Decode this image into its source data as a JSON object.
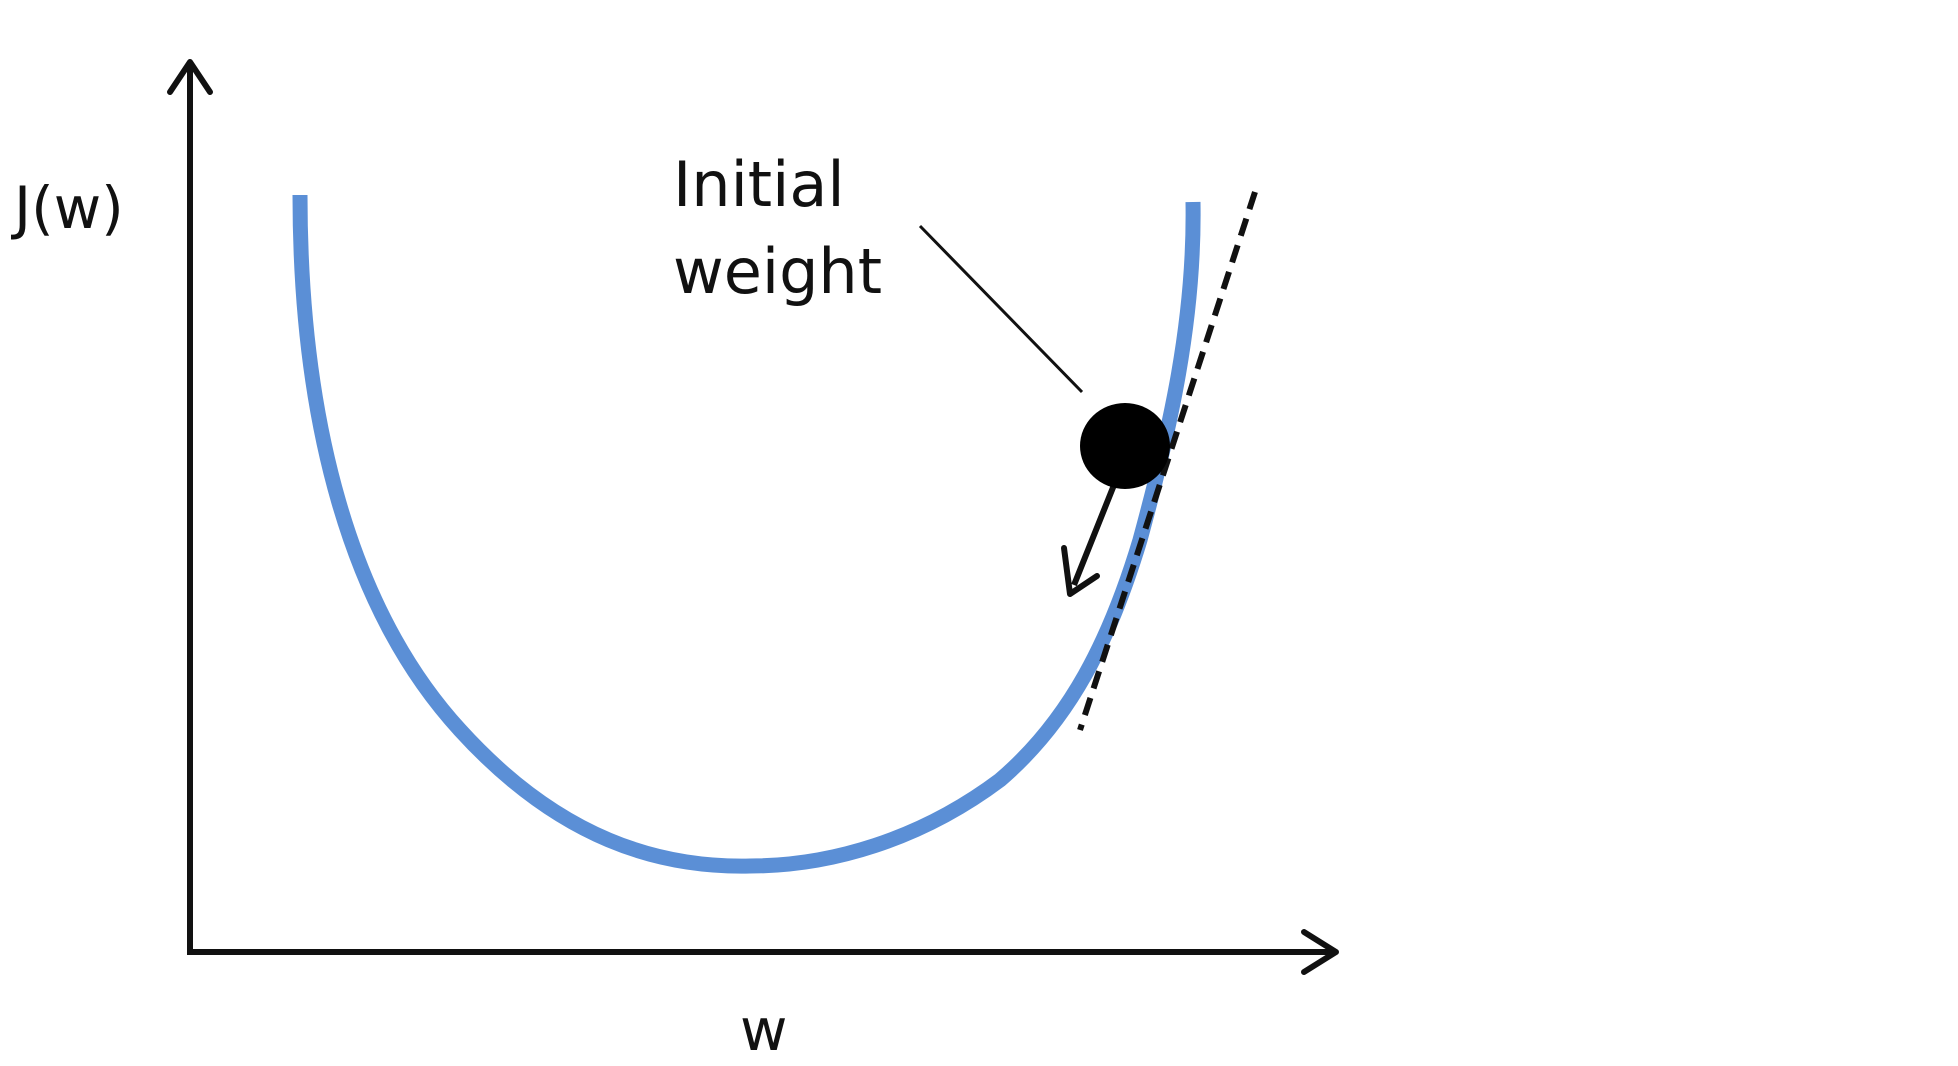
{
  "axes": {
    "y_label": "J(w)",
    "x_label": "w"
  },
  "annotation": {
    "line1": "Initial",
    "line2": "weight"
  },
  "colors": {
    "curve": "#5b8fd6",
    "axes": "#111111",
    "ball": "#000000",
    "tangent": "#111111",
    "background": "#ffffff"
  },
  "elements": {
    "cost_curve": "convex cost function J(w)",
    "initial_point": "ball at initial weight",
    "gradient_arrow": "arrow pointing downhill",
    "tangent_line": "dashed tangent line at initial weight"
  }
}
